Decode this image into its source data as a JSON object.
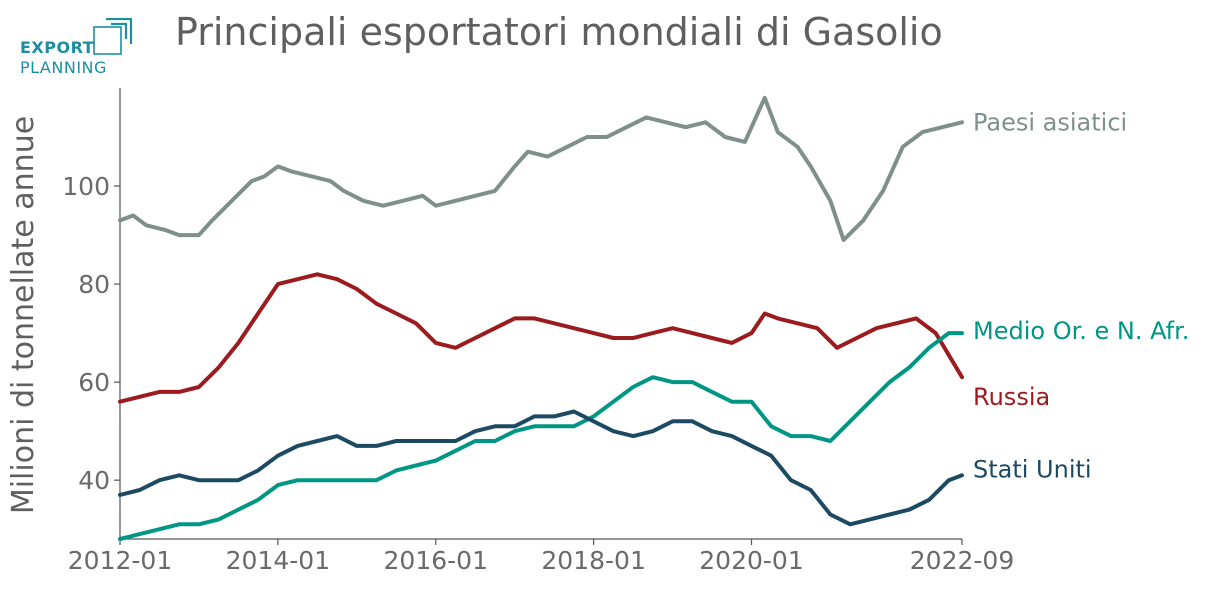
{
  "logo": {
    "line1": "EXPORT",
    "line2": "PLANNING"
  },
  "chart_data": {
    "type": "line",
    "title": "Principali esportatori mondiali di Gasolio",
    "xlabel": "",
    "ylabel": "Milioni di tonnellate annue",
    "x_start": "2012-01",
    "x_end": "2022-09",
    "xticks": [
      "2012-01",
      "2014-01",
      "2016-01",
      "2018-01",
      "2020-01",
      "2022-09"
    ],
    "yticks": [
      40,
      60,
      80,
      100
    ],
    "ylim": [
      28,
      120
    ],
    "grid": false,
    "legend": "end-of-line labels",
    "series": [
      {
        "name": "Paesi asiatici",
        "color": "#7f8f8c",
        "points": [
          [
            "2012-01",
            93
          ],
          [
            "2012-03",
            94
          ],
          [
            "2012-05",
            92
          ],
          [
            "2012-08",
            91
          ],
          [
            "2012-10",
            90
          ],
          [
            "2013-01",
            90
          ],
          [
            "2013-03",
            93
          ],
          [
            "2013-06",
            97
          ],
          [
            "2013-09",
            101
          ],
          [
            "2013-11",
            102
          ],
          [
            "2014-01",
            104
          ],
          [
            "2014-03",
            103
          ],
          [
            "2014-06",
            102
          ],
          [
            "2014-09",
            101
          ],
          [
            "2014-11",
            99
          ],
          [
            "2015-02",
            97
          ],
          [
            "2015-05",
            96
          ],
          [
            "2015-08",
            97
          ],
          [
            "2015-11",
            98
          ],
          [
            "2016-01",
            96
          ],
          [
            "2016-04",
            97
          ],
          [
            "2016-07",
            98
          ],
          [
            "2016-10",
            99
          ],
          [
            "2017-01",
            104
          ],
          [
            "2017-03",
            107
          ],
          [
            "2017-06",
            106
          ],
          [
            "2017-09",
            108
          ],
          [
            "2017-12",
            110
          ],
          [
            "2018-03",
            110
          ],
          [
            "2018-06",
            112
          ],
          [
            "2018-09",
            114
          ],
          [
            "2018-12",
            113
          ],
          [
            "2019-03",
            112
          ],
          [
            "2019-06",
            113
          ],
          [
            "2019-09",
            110
          ],
          [
            "2019-12",
            109
          ],
          [
            "2020-02",
            115
          ],
          [
            "2020-03",
            118
          ],
          [
            "2020-05",
            111
          ],
          [
            "2020-08",
            108
          ],
          [
            "2020-10",
            104
          ],
          [
            "2021-01",
            97
          ],
          [
            "2021-03",
            89
          ],
          [
            "2021-06",
            93
          ],
          [
            "2021-09",
            99
          ],
          [
            "2021-12",
            108
          ],
          [
            "2022-03",
            111
          ],
          [
            "2022-06",
            112
          ],
          [
            "2022-09",
            113
          ]
        ]
      },
      {
        "name": "Russia",
        "color": "#9b1b1f",
        "points": [
          [
            "2012-01",
            56
          ],
          [
            "2012-04",
            57
          ],
          [
            "2012-07",
            58
          ],
          [
            "2012-10",
            58
          ],
          [
            "2013-01",
            59
          ],
          [
            "2013-04",
            63
          ],
          [
            "2013-07",
            68
          ],
          [
            "2013-10",
            74
          ],
          [
            "2014-01",
            80
          ],
          [
            "2014-04",
            81
          ],
          [
            "2014-07",
            82
          ],
          [
            "2014-10",
            81
          ],
          [
            "2015-01",
            79
          ],
          [
            "2015-04",
            76
          ],
          [
            "2015-07",
            74
          ],
          [
            "2015-10",
            72
          ],
          [
            "2016-01",
            68
          ],
          [
            "2016-04",
            67
          ],
          [
            "2016-07",
            69
          ],
          [
            "2016-10",
            71
          ],
          [
            "2017-01",
            73
          ],
          [
            "2017-04",
            73
          ],
          [
            "2017-07",
            72
          ],
          [
            "2017-10",
            71
          ],
          [
            "2018-01",
            70
          ],
          [
            "2018-04",
            69
          ],
          [
            "2018-07",
            69
          ],
          [
            "2018-10",
            70
          ],
          [
            "2019-01",
            71
          ],
          [
            "2019-04",
            70
          ],
          [
            "2019-07",
            69
          ],
          [
            "2019-10",
            68
          ],
          [
            "2020-01",
            70
          ],
          [
            "2020-03",
            74
          ],
          [
            "2020-05",
            73
          ],
          [
            "2020-08",
            72
          ],
          [
            "2020-11",
            71
          ],
          [
            "2021-02",
            67
          ],
          [
            "2021-05",
            69
          ],
          [
            "2021-08",
            71
          ],
          [
            "2021-11",
            72
          ],
          [
            "2022-02",
            73
          ],
          [
            "2022-05",
            70
          ],
          [
            "2022-09",
            61
          ]
        ]
      },
      {
        "name": "Medio Or. e N. Afr.",
        "color": "#009686",
        "points": [
          [
            "2012-01",
            28
          ],
          [
            "2012-04",
            29
          ],
          [
            "2012-07",
            30
          ],
          [
            "2012-10",
            31
          ],
          [
            "2013-01",
            31
          ],
          [
            "2013-04",
            32
          ],
          [
            "2013-07",
            34
          ],
          [
            "2013-10",
            36
          ],
          [
            "2014-01",
            39
          ],
          [
            "2014-04",
            40
          ],
          [
            "2014-07",
            40
          ],
          [
            "2014-10",
            40
          ],
          [
            "2015-01",
            40
          ],
          [
            "2015-04",
            40
          ],
          [
            "2015-07",
            42
          ],
          [
            "2015-10",
            43
          ],
          [
            "2016-01",
            44
          ],
          [
            "2016-04",
            46
          ],
          [
            "2016-07",
            48
          ],
          [
            "2016-10",
            48
          ],
          [
            "2017-01",
            50
          ],
          [
            "2017-04",
            51
          ],
          [
            "2017-07",
            51
          ],
          [
            "2017-10",
            51
          ],
          [
            "2018-01",
            53
          ],
          [
            "2018-04",
            56
          ],
          [
            "2018-07",
            59
          ],
          [
            "2018-10",
            61
          ],
          [
            "2019-01",
            60
          ],
          [
            "2019-04",
            60
          ],
          [
            "2019-07",
            58
          ],
          [
            "2019-10",
            56
          ],
          [
            "2020-01",
            56
          ],
          [
            "2020-04",
            51
          ],
          [
            "2020-07",
            49
          ],
          [
            "2020-10",
            49
          ],
          [
            "2021-01",
            48
          ],
          [
            "2021-04",
            52
          ],
          [
            "2021-07",
            56
          ],
          [
            "2021-10",
            60
          ],
          [
            "2022-01",
            63
          ],
          [
            "2022-04",
            67
          ],
          [
            "2022-07",
            70
          ],
          [
            "2022-09",
            70
          ]
        ]
      },
      {
        "name": "Stati Uniti",
        "color": "#1d4a63",
        "points": [
          [
            "2012-01",
            37
          ],
          [
            "2012-04",
            38
          ],
          [
            "2012-07",
            40
          ],
          [
            "2012-10",
            41
          ],
          [
            "2013-01",
            40
          ],
          [
            "2013-04",
            40
          ],
          [
            "2013-07",
            40
          ],
          [
            "2013-10",
            42
          ],
          [
            "2014-01",
            45
          ],
          [
            "2014-04",
            47
          ],
          [
            "2014-07",
            48
          ],
          [
            "2014-10",
            49
          ],
          [
            "2015-01",
            47
          ],
          [
            "2015-04",
            47
          ],
          [
            "2015-07",
            48
          ],
          [
            "2015-10",
            48
          ],
          [
            "2016-01",
            48
          ],
          [
            "2016-04",
            48
          ],
          [
            "2016-07",
            50
          ],
          [
            "2016-10",
            51
          ],
          [
            "2017-01",
            51
          ],
          [
            "2017-04",
            53
          ],
          [
            "2017-07",
            53
          ],
          [
            "2017-10",
            54
          ],
          [
            "2018-01",
            52
          ],
          [
            "2018-04",
            50
          ],
          [
            "2018-07",
            49
          ],
          [
            "2018-10",
            50
          ],
          [
            "2019-01",
            52
          ],
          [
            "2019-04",
            52
          ],
          [
            "2019-07",
            50
          ],
          [
            "2019-10",
            49
          ],
          [
            "2020-01",
            47
          ],
          [
            "2020-04",
            45
          ],
          [
            "2020-07",
            40
          ],
          [
            "2020-10",
            38
          ],
          [
            "2021-01",
            33
          ],
          [
            "2021-04",
            31
          ],
          [
            "2021-07",
            32
          ],
          [
            "2021-10",
            33
          ],
          [
            "2022-01",
            34
          ],
          [
            "2022-04",
            36
          ],
          [
            "2022-07",
            40
          ],
          [
            "2022-09",
            41
          ]
        ]
      }
    ]
  }
}
